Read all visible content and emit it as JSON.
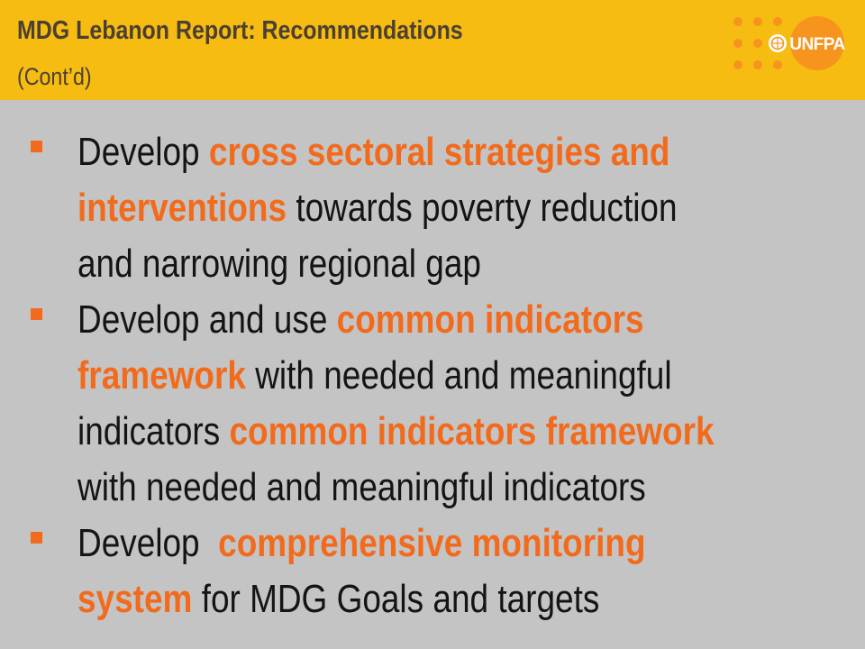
{
  "header": {
    "title": "MDG Lebanon Report: Recommendations",
    "subtitle": "(Cont’d)",
    "logo_text": "UNFPA",
    "colors": {
      "band": "#f6bc12",
      "text": "#4b4032",
      "logo_orange": "#f7941d"
    }
  },
  "bullets": [
    {
      "lines": [
        [
          {
            "t": "Develop ",
            "h": false
          },
          {
            "t": "cross sectoral strategies and",
            "h": true
          }
        ],
        [
          {
            "t": "interventions",
            "h": true
          },
          {
            "t": " towards poverty reduction",
            "h": false
          }
        ],
        [
          {
            "t": "and narrowing regional gap",
            "h": false
          }
        ]
      ]
    },
    {
      "lines": [
        [
          {
            "t": "Develop and use ",
            "h": false
          },
          {
            "t": "common indicators",
            "h": true
          }
        ],
        [
          {
            "t": "framework",
            "h": true
          },
          {
            "t": " with needed and meaningful",
            "h": false
          }
        ],
        [
          {
            "t": "indicators ",
            "h": false
          },
          {
            "t": "common indicators framework",
            "h": true
          }
        ],
        [
          {
            "t": "with needed and meaningful indicators",
            "h": false
          }
        ]
      ]
    },
    {
      "lines": [
        [
          {
            "t": "Develop  ",
            "h": false
          },
          {
            "t": "comprehensive monitoring",
            "h": true
          }
        ],
        [
          {
            "t": "system",
            "h": true
          },
          {
            "t": " for MDG Goals and targets",
            "h": false
          }
        ]
      ]
    }
  ],
  "colors": {
    "background": "#c4c4c4",
    "highlight": "#f26b1d",
    "body_text": "#141414"
  }
}
